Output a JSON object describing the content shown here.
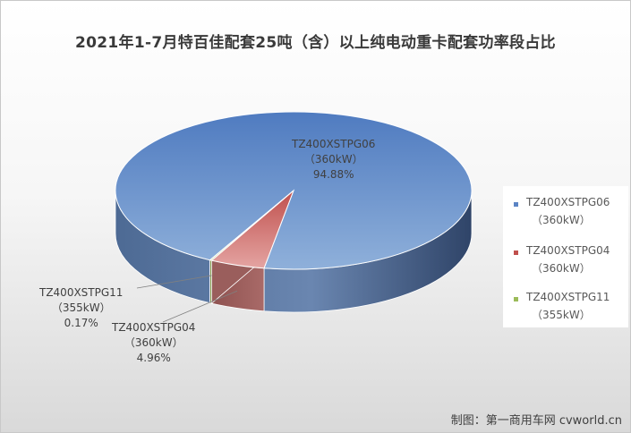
{
  "chart_data": {
    "type": "pie",
    "style": "3d",
    "title": "2021年1-7月特百佳配套25吨（含）以上纯电动重卡配套功率段占比",
    "legend_position": "right",
    "slices": [
      {
        "name": "TZ400XSTPG06",
        "power": "（360kW）",
        "value": 94.88,
        "label": "94.88%",
        "color": "#5b84c4"
      },
      {
        "name": "TZ400XSTPG04",
        "power": "（360kW）",
        "value": 4.96,
        "label": "4.96%",
        "color": "#c0504d"
      },
      {
        "name": "TZ400XSTPG11",
        "power": "（355kW）",
        "value": 0.17,
        "label": "0.17%",
        "color": "#9bbb59"
      }
    ]
  },
  "credit": "制图：第一商用车网 cvworld.cn"
}
